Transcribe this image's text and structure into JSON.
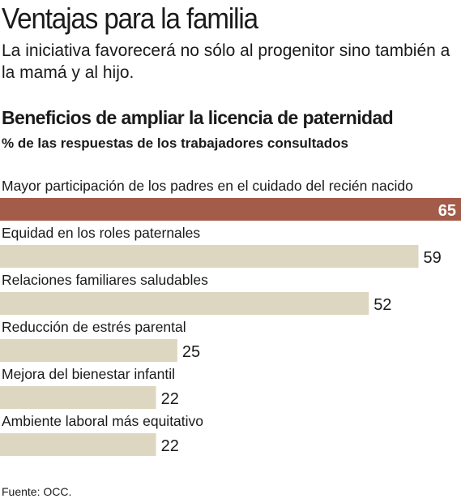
{
  "header": {
    "title": "Ventajas para la familia",
    "subtitle": "La iniciativa favorecerá no sólo al progenitor sino también a la mamá y al hijo."
  },
  "chart_data": {
    "type": "bar",
    "orientation": "horizontal",
    "title": "Beneficios de ampliar la licencia de paternidad",
    "subtitle": "% de las respuestas de los trabajadores consultados",
    "categories": [
      "Mayor participación de los padres en el cuidado del recién nacido",
      "Equidad en los roles paternales",
      "Relaciones familiares saludables",
      "Reducción de estrés parental",
      "Mejora del bienestar infantil",
      "Ambiente laboral más equitativo"
    ],
    "values": [
      65,
      59,
      52,
      25,
      22,
      22
    ],
    "highlight_index": 0,
    "highlight_color": "#a35c4a",
    "bar_color": "#ddd6c0",
    "xlim": [
      0,
      65
    ]
  },
  "footer": {
    "source": "Fuente: OCC."
  }
}
